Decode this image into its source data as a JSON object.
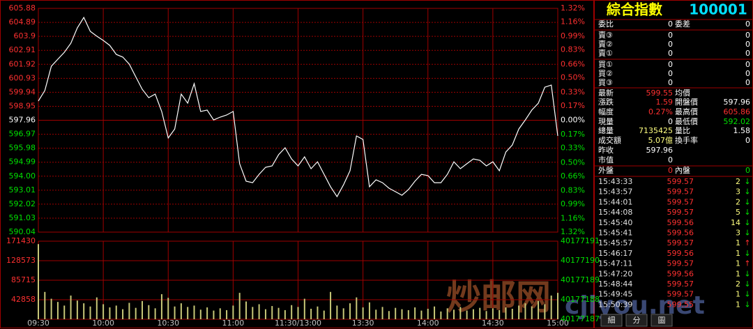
{
  "chart_data": [
    {
      "type": "line",
      "color": "#ffffff",
      "categories": [
        "09:30",
        null,
        null,
        null,
        null,
        null,
        null,
        null,
        null,
        null,
        "10:00",
        null,
        null,
        null,
        null,
        null,
        null,
        null,
        null,
        null,
        "10:30",
        null,
        null,
        null,
        null,
        null,
        null,
        null,
        null,
        null,
        "11:00",
        null,
        null,
        null,
        null,
        null,
        null,
        null,
        null,
        null,
        "11:30/13:00",
        null,
        null,
        null,
        null,
        null,
        null,
        null,
        null,
        null,
        "13:30",
        null,
        null,
        null,
        null,
        null,
        null,
        null,
        null,
        null,
        "14:00",
        null,
        null,
        null,
        null,
        null,
        null,
        null,
        null,
        null,
        "14:30",
        null,
        null,
        null,
        null,
        null,
        null,
        null,
        null,
        null,
        "15:00"
      ],
      "values": [
        599.32,
        600.06,
        601.78,
        602.28,
        602.77,
        603.41,
        604.5,
        605.24,
        604.25,
        603.91,
        603.61,
        603.26,
        602.62,
        602.43,
        601.93,
        601.04,
        600.15,
        599.56,
        599.81,
        598.58,
        596.7,
        597.34,
        599.81,
        599.17,
        600.55,
        598.58,
        598.68,
        597.98,
        598.18,
        598.33,
        598.58,
        594.88,
        593.64,
        593.54,
        594.13,
        594.63,
        594.73,
        595.52,
        596.01,
        595.22,
        594.73,
        595.37,
        594.53,
        595.02,
        594.13,
        593.25,
        592.55,
        593.39,
        594.38,
        596.85,
        596.6,
        593.25,
        593.74,
        593.54,
        593.15,
        592.9,
        592.65,
        593.05,
        593.64,
        594.13,
        594.04,
        593.54,
        593.54,
        594.13,
        595.02,
        594.53,
        594.88,
        595.22,
        595.12,
        594.73,
        595.02,
        594.38,
        595.71,
        596.21,
        597.34,
        597.98,
        598.68,
        599.17,
        600.3,
        600.45,
        596.85
      ],
      "ylim": [
        590.04,
        605.88
      ],
      "yticks": [
        605.88,
        604.89,
        603.9,
        602.91,
        601.92,
        600.93,
        599.94,
        598.95,
        597.96,
        596.97,
        595.98,
        594.99,
        {
          "value": 594,
          "label": "594.00"
        },
        593.01,
        592.02,
        591.03,
        590.04
      ],
      "y2lim": [
        -1.32,
        1.32
      ],
      "y2ticks": [
        {
          "value": 1.32,
          "label": "1.32%"
        },
        {
          "value": 1.16,
          "label": "1.16%"
        },
        {
          "value": 0.99,
          "label": "0.99%"
        },
        {
          "value": 0.83,
          "label": "0.83%"
        },
        {
          "value": 0.66,
          "label": "0.66%"
        },
        {
          "value": 0.5,
          "label": "0.50%"
        },
        {
          "value": 0.33,
          "label": "0.33%"
        },
        {
          "value": 0.17,
          "label": "0.17%"
        },
        {
          "value": 0,
          "label": "0.00%"
        },
        {
          "value": -0.17,
          "label": "0.17%"
        },
        {
          "value": -0.33,
          "label": "0.33%"
        },
        {
          "value": -0.5,
          "label": "0.50%"
        },
        {
          "value": -0.66,
          "label": "0.66%"
        },
        {
          "value": -0.83,
          "label": "0.83%"
        },
        {
          "value": -0.99,
          "label": "0.99%"
        },
        {
          "value": -1.16,
          "label": "1.16%"
        },
        {
          "value": -1.32,
          "label": "1.32%"
        }
      ],
      "grid": true
    },
    {
      "type": "bar",
      "color": "#c8c878",
      "values": [
        165000,
        60000,
        45000,
        38000,
        30000,
        52000,
        41000,
        35000,
        28000,
        48000,
        33000,
        26000,
        30000,
        22000,
        36000,
        25000,
        40000,
        31000,
        24000,
        55000,
        47000,
        28000,
        35000,
        27000,
        30000,
        21000,
        26000,
        19000,
        24000,
        20000,
        30000,
        58000,
        39000,
        27000,
        33000,
        22000,
        29000,
        25000,
        20000,
        31000,
        27000,
        45000,
        23000,
        28000,
        19000,
        60000,
        30000,
        24000,
        35000,
        48000,
        26000,
        37000,
        21000,
        27000,
        18000,
        25000,
        22000,
        20000,
        26000,
        19000,
        23000,
        28000,
        17000,
        24000,
        21000,
        27000,
        19000,
        22000,
        25000,
        18000,
        24000,
        20000,
        26000,
        23000,
        30000,
        35000,
        28000,
        40000,
        33000,
        52000,
        58000
      ],
      "ylim": [
        0,
        171430
      ],
      "yticks": [
        171430,
        128573,
        85715,
        42858
      ],
      "y2lim": [
        40177187,
        40177191
      ],
      "y2ticks": [
        40177191,
        40177190,
        40177189,
        40177188,
        40177187
      ],
      "grid": true
    }
  ],
  "panel": {
    "title": "綜合指數",
    "code": "100001",
    "rows": [
      {
        "cells": [
          "委比",
          "0",
          "委差",
          "0"
        ],
        "colors": [
          "#fff",
          "#fff",
          "#fff",
          "#fff"
        ]
      },
      {
        "cells": [
          "賣③",
          "0",
          null,
          "0"
        ],
        "colors": [
          "#fff",
          "#fff",
          "#fff",
          "#fff"
        ]
      },
      {
        "cells": [
          "賣②",
          "0",
          null,
          "0"
        ],
        "colors": [
          "#fff",
          "#fff",
          "#fff",
          "#fff"
        ]
      },
      {
        "cells": [
          "賣①",
          "0",
          null,
          "0"
        ],
        "colors": [
          "#fff",
          "#fff",
          "#fff",
          "#fff"
        ]
      },
      {
        "cells": [
          "買①",
          "0",
          null,
          "0"
        ],
        "colors": [
          "#fff",
          "#fff",
          "#fff",
          "#fff"
        ]
      },
      {
        "cells": [
          "買②",
          "0",
          null,
          "0"
        ],
        "colors": [
          "#fff",
          "#fff",
          "#fff",
          "#fff"
        ]
      },
      {
        "cells": [
          "買③",
          "0",
          null,
          "0"
        ],
        "colors": [
          "#fff",
          "#fff",
          "#fff",
          "#fff"
        ]
      },
      {
        "cells": [
          "最新",
          "599.55",
          "均價",
          null
        ],
        "colors": [
          "#fff",
          "#ff3030",
          "#fff",
          "#fff"
        ]
      },
      {
        "cells": [
          "漲跌",
          "1.59",
          "開盤價",
          "597.96"
        ],
        "colors": [
          "#fff",
          "#ff3030",
          "#fff",
          "#fff"
        ]
      },
      {
        "cells": [
          "幅度",
          "0.27%",
          "最高價",
          "605.86"
        ],
        "colors": [
          "#fff",
          "#ff3030",
          "#fff",
          "#ff3030"
        ]
      },
      {
        "cells": [
          "現量",
          "0",
          "最低價",
          "592.02"
        ],
        "colors": [
          "#fff",
          "#fff",
          "#fff",
          "#00e000"
        ]
      },
      {
        "cells": [
          "總量",
          "7135425",
          "量比",
          "1.58"
        ],
        "colors": [
          "#fff",
          "#ffff80",
          "#fff",
          "#fff"
        ]
      },
      {
        "cells": [
          "成交額",
          "5.07億",
          "換手率",
          "0"
        ],
        "colors": [
          "#fff",
          "#ffff80",
          "#fff",
          "#fff"
        ]
      },
      {
        "cells": [
          "昨收",
          "597.96",
          null,
          null
        ],
        "colors": [
          "#fff",
          "#fff",
          "#fff",
          "#fff"
        ]
      },
      {
        "cells": [
          "市值",
          "0",
          null,
          null
        ],
        "colors": [
          "#fff",
          "#fff",
          "#fff",
          "#fff"
        ]
      },
      {
        "cells": [
          "外盤",
          "0",
          "內盤",
          "0"
        ],
        "colors": [
          "#fff",
          "#ff3030",
          "#fff",
          "#00e000"
        ]
      }
    ],
    "trades": [
      {
        "time": "15:43:33",
        "price": "599.57",
        "volume": "2",
        "dir": "↓",
        "color": "#00e000"
      },
      {
        "time": "15:43:57",
        "price": "599.57",
        "volume": "3",
        "dir": "↓",
        "color": "#00e000"
      },
      {
        "time": "15:44:01",
        "price": "599.57",
        "volume": "2",
        "dir": "↓",
        "color": "#00e000"
      },
      {
        "time": "15:44:08",
        "price": "599.57",
        "volume": "5",
        "dir": "↓",
        "color": "#00e000"
      },
      {
        "time": "15:45:40",
        "price": "599.56",
        "volume": "14",
        "dir": "↓",
        "color": "#00e000"
      },
      {
        "time": "15:45:41",
        "price": "599.56",
        "volume": "3",
        "dir": "↓",
        "color": "#00e000"
      },
      {
        "time": "15:45:57",
        "price": "599.57",
        "volume": "1",
        "dir": "↑",
        "color": "#ff3030"
      },
      {
        "time": "15:46:17",
        "price": "599.56",
        "volume": "1",
        "dir": "↓",
        "color": "#00e000"
      },
      {
        "time": "15:47:11",
        "price": "599.57",
        "volume": "1",
        "dir": "↑",
        "color": "#ff3030"
      },
      {
        "time": "15:47:20",
        "price": "599.56",
        "volume": "1",
        "dir": "↓",
        "color": "#00e000"
      },
      {
        "time": "15:48:44",
        "price": "599.57",
        "volume": "2",
        "dir": "↓",
        "color": "#00e000"
      },
      {
        "time": "15:49:45",
        "price": "599.57",
        "volume": "1",
        "dir": "↓",
        "color": "#00e000"
      },
      {
        "time": "15:50:39",
        "price": "599.55",
        "volume": "1",
        "dir": "↓",
        "color": "#00e000"
      }
    ],
    "tabs": [
      "細",
      "分",
      "圖"
    ]
  },
  "watermark": {
    "cn": "炒邮网",
    "en": "cjiyou.net"
  }
}
